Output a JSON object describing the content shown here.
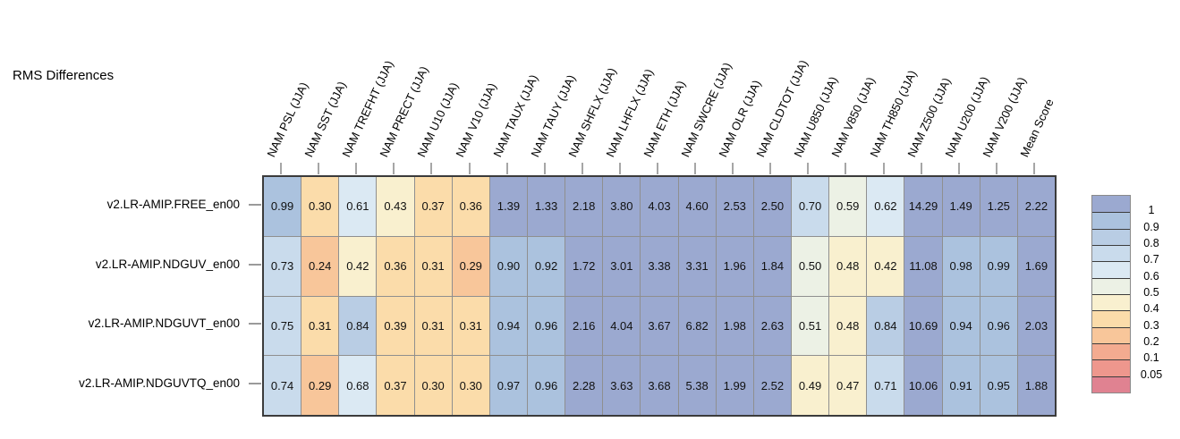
{
  "title": "RMS Differences",
  "colors": {
    "background": "#ffffff",
    "grid_line": "#8f8f8f",
    "grid_border": "#3b3b3b",
    "tick": "#a6a6a6",
    "text": "#000000"
  },
  "chart_data": {
    "type": "heatmap",
    "title": "RMS Differences",
    "columns": [
      "NAM PSL (JJA)",
      "NAM SST (JJA)",
      "NAM TREFHT (JJA)",
      "NAM PRECT (JJA)",
      "NAM U10 (JJA)",
      "NAM V10 (JJA)",
      "NAM TAUX (JJA)",
      "NAM TAUY (JJA)",
      "NAM SHFLX (JJA)",
      "NAM LHFLX (JJA)",
      "NAM ETH (JJA)",
      "NAM SWCRE (JJA)",
      "NAM OLR (JJA)",
      "NAM CLDTOT (JJA)",
      "NAM U850 (JJA)",
      "NAM V850 (JJA)",
      "NAM TH850 (JJA)",
      "NAM Z500 (JJA)",
      "NAM U200 (JJA)",
      "NAM V200 (JJA)",
      "Mean Score"
    ],
    "rows": [
      "v2.LR-AMIP.FREE_en00",
      "v2.LR-AMIP.NDGUV_en00",
      "v2.LR-AMIP.NDGUVT_en00",
      "v2.LR-AMIP.NDGUVTQ_en00"
    ],
    "values": [
      [
        0.99,
        0.3,
        0.61,
        0.43,
        0.37,
        0.36,
        1.39,
        1.33,
        2.18,
        3.8,
        4.03,
        4.6,
        2.53,
        2.5,
        0.7,
        0.59,
        0.62,
        14.29,
        1.49,
        1.25,
        2.22
      ],
      [
        0.73,
        0.24,
        0.42,
        0.36,
        0.31,
        0.29,
        0.9,
        0.92,
        1.72,
        3.01,
        3.38,
        3.31,
        1.96,
        1.84,
        0.5,
        0.48,
        0.42,
        11.08,
        0.98,
        0.99,
        1.69
      ],
      [
        0.75,
        0.31,
        0.84,
        0.39,
        0.31,
        0.31,
        0.94,
        0.96,
        2.16,
        4.04,
        3.67,
        6.82,
        1.98,
        2.63,
        0.51,
        0.48,
        0.84,
        10.69,
        0.94,
        0.96,
        2.03
      ],
      [
        0.74,
        0.29,
        0.68,
        0.37,
        0.3,
        0.3,
        0.97,
        0.96,
        2.28,
        3.63,
        3.68,
        5.38,
        1.99,
        2.52,
        0.49,
        0.47,
        0.71,
        10.06,
        0.91,
        0.95,
        1.88
      ]
    ],
    "value_decimals": 2,
    "legend": {
      "position": "right",
      "tick_labels": [
        "1",
        "0.9",
        "0.8",
        "0.7",
        "0.6",
        "0.5",
        "0.4",
        "0.3",
        "0.2",
        "0.1",
        "0.05"
      ],
      "thresholds": [
        1,
        0.9,
        0.8,
        0.7,
        0.6,
        0.5,
        0.4,
        0.3,
        0.2,
        0.1,
        0.05
      ],
      "band_colors": [
        "#9ba9d0",
        "#abc2de",
        "#b9cde4",
        "#c9dbec",
        "#dbe9f3",
        "#ecf1e5",
        "#f9f0cf",
        "#fbdcaa",
        "#f8c69a",
        "#f3ab90",
        "#ee978d",
        "#e08291"
      ]
    }
  }
}
